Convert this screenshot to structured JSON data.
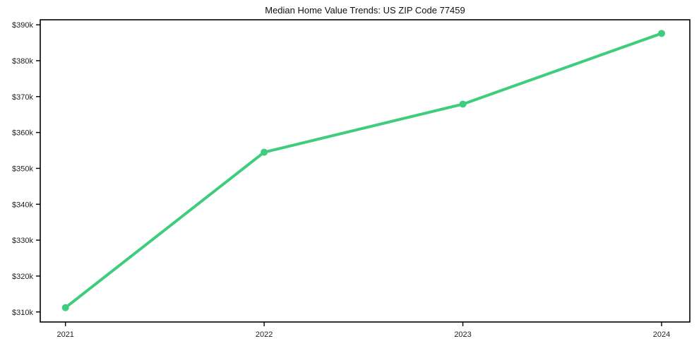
{
  "chart_data": {
    "type": "line",
    "title": "Median Home Value Trends: US ZIP Code 77459",
    "categories": [
      "2021",
      "2022",
      "2023",
      "2024"
    ],
    "values": [
      311200,
      354500,
      367900,
      387600
    ],
    "xlabel": "",
    "ylabel": "",
    "ylim": [
      307200,
      391400
    ],
    "yticks": [
      310000,
      320000,
      330000,
      340000,
      350000,
      360000,
      370000,
      380000,
      390000
    ],
    "ytick_labels": [
      "$310k",
      "$320k",
      "$330k",
      "$340k",
      "$350k",
      "$360k",
      "$370k",
      "$380k",
      "$390k"
    ],
    "grid": false,
    "legend": "none",
    "line_color": "#3dcd7d",
    "marker_color": "#3dcd7d",
    "background_color": "#ffffff",
    "text_color": "#1f1f1f",
    "axis_color": "#000000"
  }
}
